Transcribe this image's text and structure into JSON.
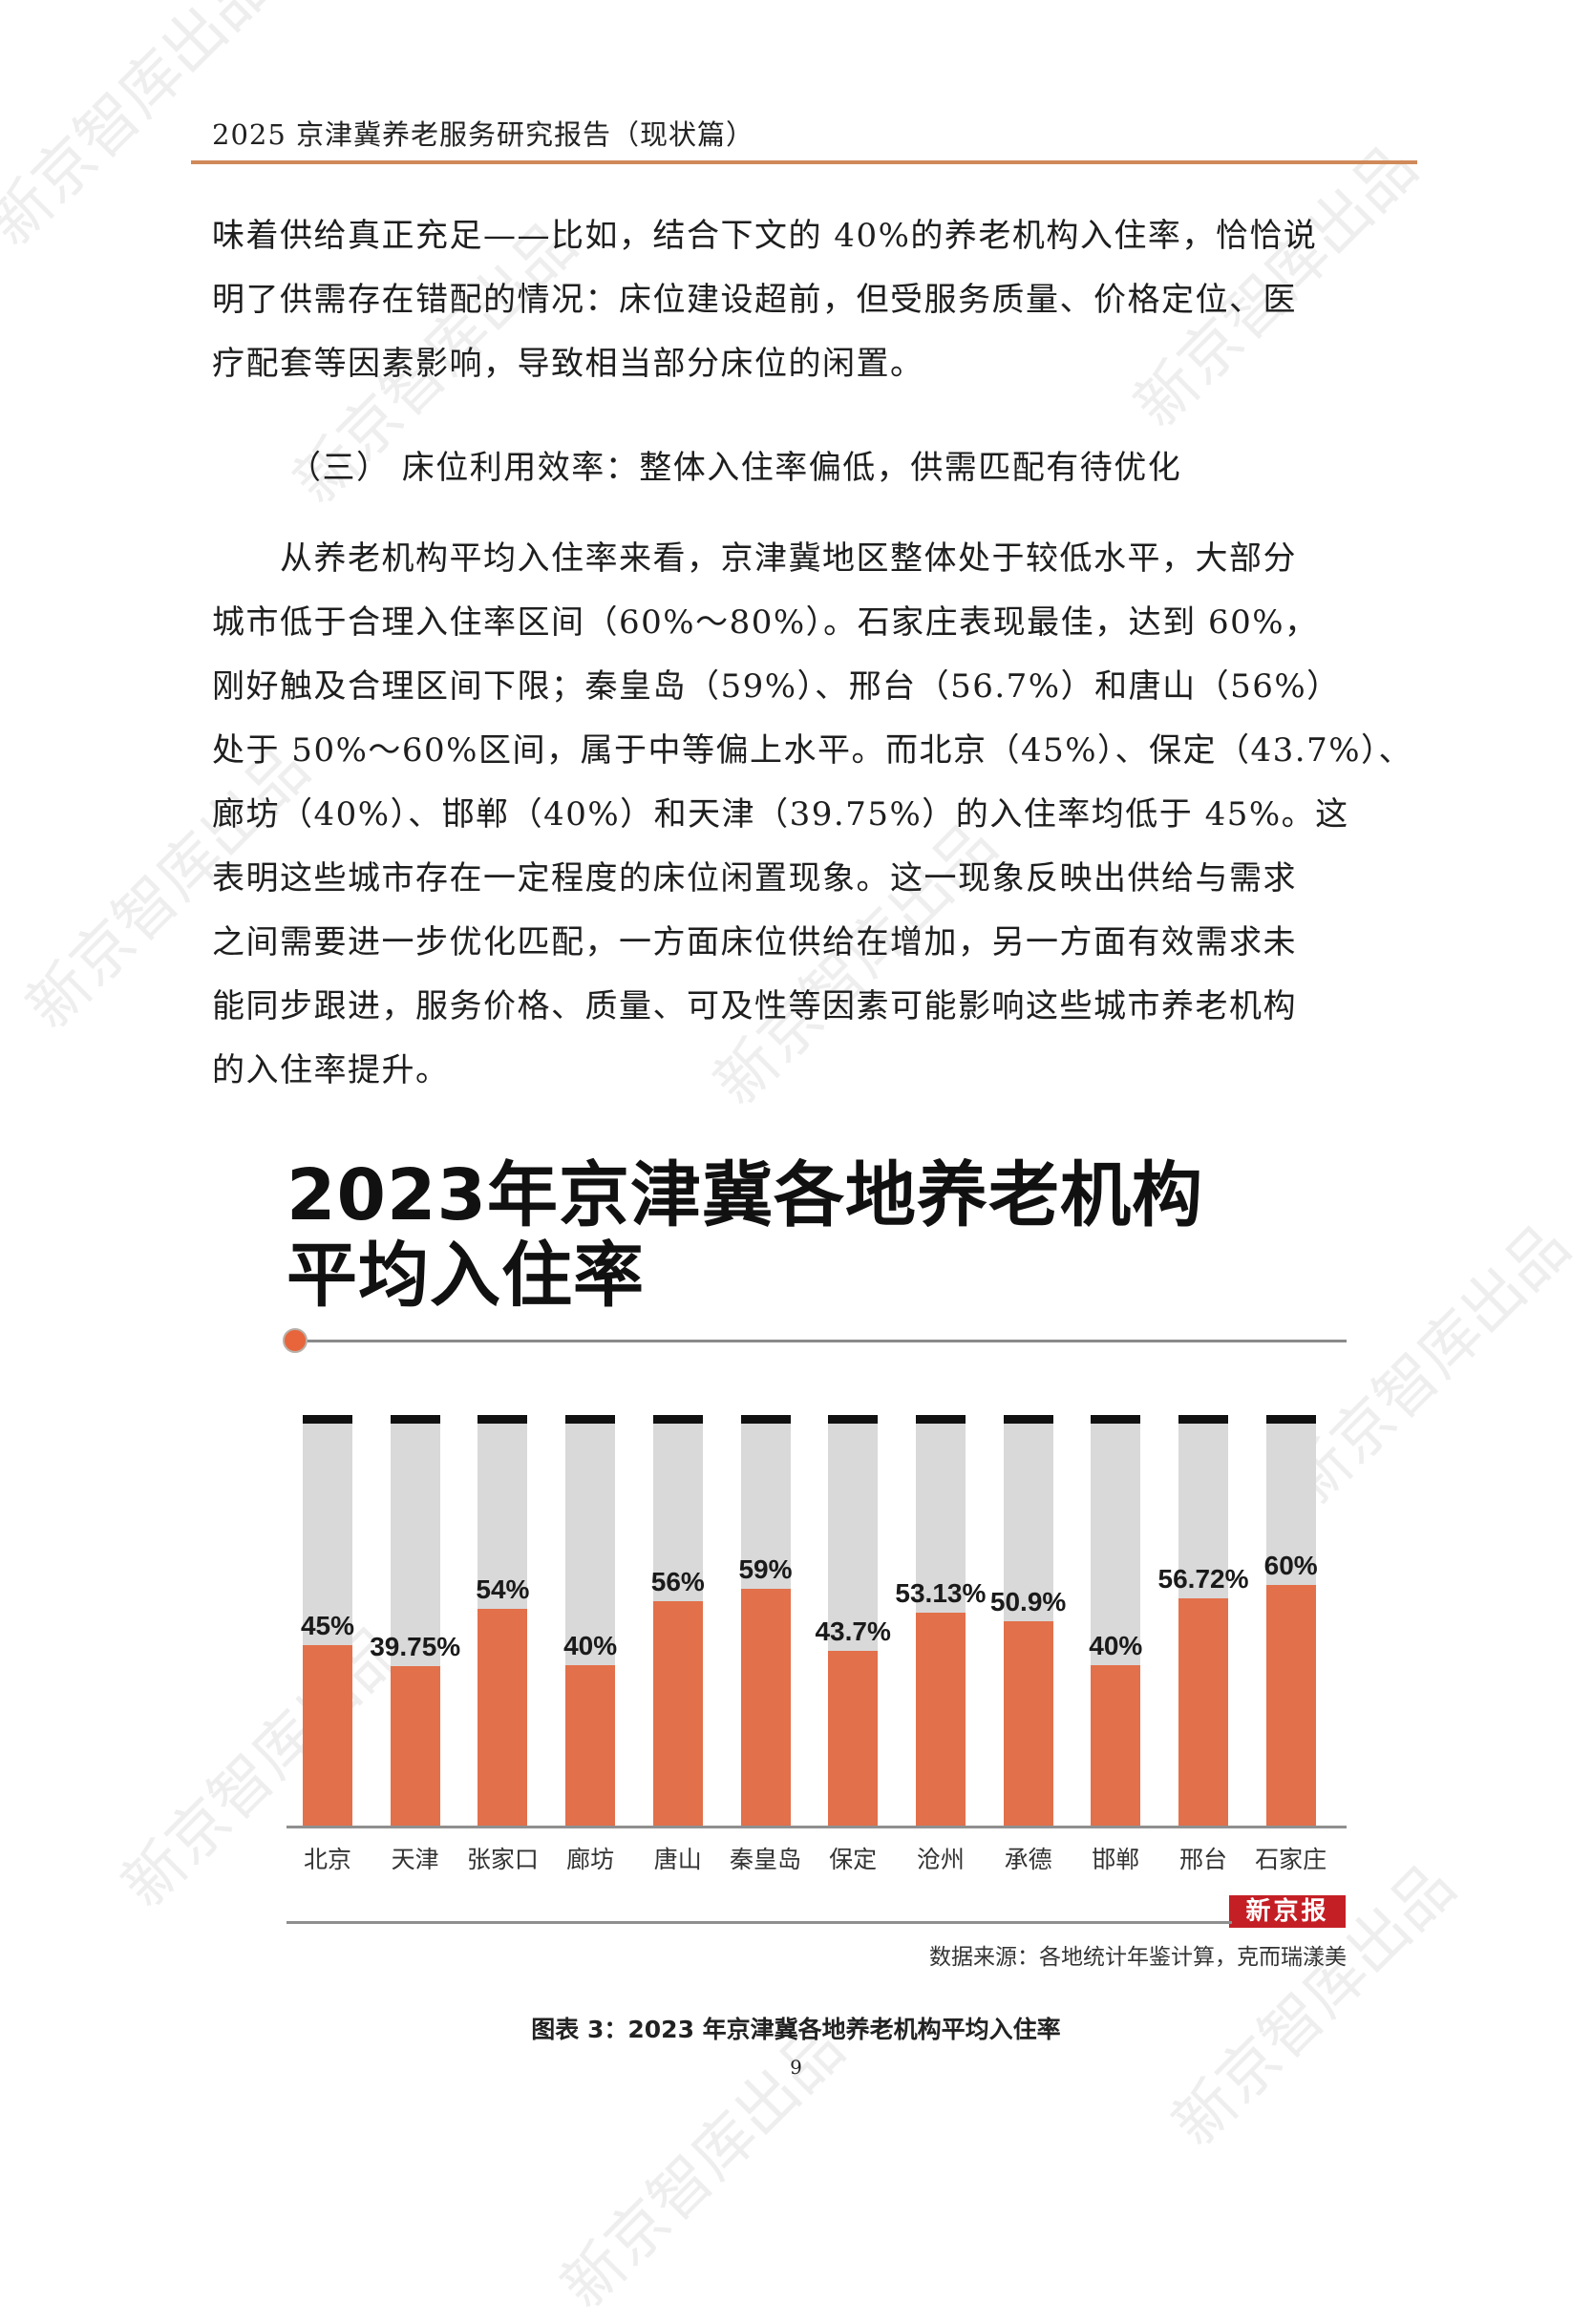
{
  "header": {
    "title": "2025 京津冀养老服务研究报告（现状篇）"
  },
  "paragraph1": {
    "lines": [
      "味着供给真正充足——比如，结合下文的 40%的养老机构入住率，恰恰说",
      "明了供需存在错配的情况：床位建设超前，但受服务质量、价格定位、医",
      "疗配套等因素影响，导致相当部分床位的闲置。"
    ]
  },
  "section": {
    "title": "（三） 床位利用效率：整体入住率偏低，供需匹配有待优化"
  },
  "paragraph2": {
    "lines": [
      "　　从养老机构平均入住率来看，京津冀地区整体处于较低水平，大部分",
      "城市低于合理入住率区间（60%～80%）。石家庄表现最佳，达到 60%，",
      "刚好触及合理区间下限；秦皇岛（59%）、邢台（56.7%）和唐山（56%）",
      "处于 50%～60%区间，属于中等偏上水平。而北京（45%）、保定（43.7%）、",
      "廊坊（40%）、邯郸（40%）和天津（39.75%）的入住率均低于 45%。这",
      "表明这些城市存在一定程度的床位闲置现象。这一现象反映出供给与需求",
      "之间需要进一步优化匹配，一方面床位供给在增加，另一方面有效需求未",
      "能同步跟进，服务价格、质量、可及性等因素可能影响这些城市养老机构",
      "的入住率提升。"
    ]
  },
  "chart_data": {
    "type": "bar",
    "title": "2023年京津冀各地养老机构平均入住率",
    "title_lines": [
      "2023年京津冀各地养老机构",
      "平均入住率"
    ],
    "categories": [
      "北京",
      "天津",
      "张家口",
      "廊坊",
      "唐山",
      "秦皇岛",
      "保定",
      "沧州",
      "承德",
      "邯郸",
      "邢台",
      "石家庄"
    ],
    "values": [
      45,
      39.75,
      54,
      40,
      56,
      59,
      43.7,
      53.13,
      50.9,
      40,
      56.72,
      60
    ],
    "value_labels": [
      "45%",
      "39.75%",
      "54%",
      "40%",
      "56%",
      "59%",
      "43.7%",
      "53.13%",
      "50.9%",
      "40%",
      "56.72%",
      "60%"
    ],
    "xlabel": "",
    "ylabel": "",
    "ylim": [
      0,
      100
    ],
    "grid": false,
    "legend": null,
    "background_track": "100% grey track with black cap",
    "source": "数据来源：各地统计年鉴计算，克而瑞漾美",
    "brand": "新京报",
    "colors": {
      "fill": "#e2704a",
      "track": "#d9d9d9",
      "cap": "#111111",
      "brand_bg": "#c41f25",
      "accent_dot": "#e8643a",
      "header_rule": "#d08a5a"
    }
  },
  "caption": "图表 3：2023 年京津冀各地养老机构平均入住率",
  "page_number": "9",
  "watermark": "新京智库出品"
}
